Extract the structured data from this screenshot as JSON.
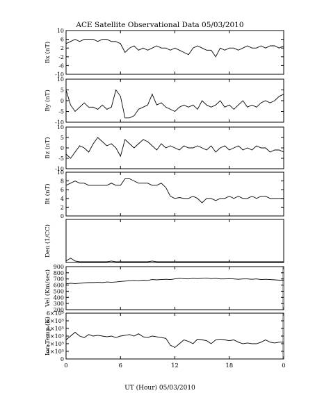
{
  "title": "ACE Satellite Observational Data   05/03/2010",
  "xlabel": "UT (Hour)   05/03/2010",
  "line_color": "#000000",
  "chart_data": [
    {
      "type": "line",
      "ylabel": "Bx (nT)",
      "ylim": [
        -10,
        10
      ],
      "yticks": [
        "10",
        "6",
        "2",
        "-2",
        "-6",
        "-10"
      ],
      "ytick_values": [
        10,
        6,
        2,
        -2,
        -6,
        -10
      ],
      "xlim": [
        0,
        24
      ],
      "x": [
        0,
        0.5,
        1,
        1.5,
        2,
        2.5,
        3,
        3.5,
        4,
        4.5,
        5,
        5.5,
        6,
        6.5,
        7,
        7.5,
        8,
        8.5,
        9,
        9.5,
        10,
        10.5,
        11,
        11.5,
        12,
        12.5,
        13,
        13.5,
        14,
        14.5,
        15,
        15.5,
        16,
        16.5,
        17,
        17.5,
        18,
        18.5,
        19,
        19.5,
        20,
        20.5,
        21,
        21.5,
        22,
        22.5,
        23,
        23.5,
        24
      ],
      "values": [
        4,
        5,
        6,
        5,
        6,
        6,
        6,
        5,
        6,
        6,
        5,
        5,
        4,
        0,
        2,
        3,
        1,
        2,
        1,
        2,
        3,
        2,
        2,
        1,
        2,
        1,
        0,
        -1,
        2,
        3,
        2,
        1,
        1,
        -2,
        2,
        1,
        2,
        2,
        1,
        2,
        3,
        2,
        2,
        3,
        2,
        3,
        3,
        2,
        3
      ]
    },
    {
      "type": "line",
      "ylabel": "By (nT)",
      "ylim": [
        -10,
        10
      ],
      "yticks": [
        "10",
        "5",
        "0",
        "-5",
        "-10"
      ],
      "ytick_values": [
        10,
        5,
        0,
        -5,
        -10
      ],
      "xlim": [
        0,
        24
      ],
      "x": [
        0,
        0.5,
        1,
        1.5,
        2,
        2.5,
        3,
        3.5,
        4,
        4.5,
        5,
        5.5,
        6,
        6.5,
        7,
        7.5,
        8,
        8.5,
        9,
        9.5,
        10,
        10.5,
        11,
        11.5,
        12,
        12.5,
        13,
        13.5,
        14,
        14.5,
        15,
        15.5,
        16,
        16.5,
        17,
        17.5,
        18,
        18.5,
        19,
        19.5,
        20,
        20.5,
        21,
        21.5,
        22,
        22.5,
        23,
        23.5,
        24
      ],
      "values": [
        5,
        -2,
        -5,
        -3,
        -1,
        -3,
        -3,
        -4,
        -2,
        -4,
        -3,
        5,
        2,
        -8,
        -8,
        -7,
        -4,
        -3,
        -2,
        3,
        -2,
        -1,
        -3,
        -4,
        -5,
        -3,
        -2,
        -3,
        -2,
        -4,
        0,
        -2,
        -3,
        -2,
        0,
        -3,
        -2,
        -4,
        -2,
        0,
        -3,
        -2,
        -3,
        -1,
        0,
        -1,
        0,
        2,
        3
      ]
    },
    {
      "type": "line",
      "ylabel": "Bz (nT)",
      "ylim": [
        -10,
        10
      ],
      "yticks": [
        "10",
        "5",
        "0",
        "-5",
        "-10"
      ],
      "ytick_values": [
        10,
        5,
        0,
        -5,
        -10
      ],
      "xlim": [
        0,
        24
      ],
      "x": [
        0,
        0.5,
        1,
        1.5,
        2,
        2.5,
        3,
        3.5,
        4,
        4.5,
        5,
        5.5,
        6,
        6.5,
        7,
        7.5,
        8,
        8.5,
        9,
        9.5,
        10,
        10.5,
        11,
        11.5,
        12,
        12.5,
        13,
        13.5,
        14,
        14.5,
        15,
        15.5,
        16,
        16.5,
        17,
        17.5,
        18,
        18.5,
        19,
        19.5,
        20,
        20.5,
        21,
        21.5,
        22,
        22.5,
        23,
        23.5,
        24
      ],
      "values": [
        -3,
        -5,
        -2,
        1,
        0,
        -2,
        2,
        5,
        3,
        1,
        2,
        0,
        -4,
        4,
        2,
        0,
        2,
        4,
        3,
        1,
        -1,
        2,
        0,
        1,
        0,
        -1,
        1,
        0,
        0,
        1,
        0,
        -1,
        1,
        -2,
        0,
        1,
        -1,
        0,
        1,
        -1,
        0,
        -1,
        1,
        0,
        0,
        -2,
        -1,
        -1,
        -2
      ]
    },
    {
      "type": "line",
      "ylabel": "Bt (nT)",
      "ylim": [
        0,
        10
      ],
      "yticks": [
        "10",
        "8",
        "6",
        "4",
        "2",
        "0"
      ],
      "ytick_values": [
        10,
        8,
        6,
        4,
        2,
        0
      ],
      "xlim": [
        0,
        24
      ],
      "x": [
        0,
        0.5,
        1,
        1.5,
        2,
        2.5,
        3,
        3.5,
        4,
        4.5,
        5,
        5.5,
        6,
        6.5,
        7,
        7.5,
        8,
        8.5,
        9,
        9.5,
        10,
        10.5,
        11,
        11.5,
        12,
        12.5,
        13,
        13.5,
        14,
        14.5,
        15,
        15.5,
        16,
        16.5,
        17,
        17.5,
        18,
        18.5,
        19,
        19.5,
        20,
        20.5,
        21,
        21.5,
        22,
        22.5,
        23,
        23.5,
        24
      ],
      "values": [
        7,
        7.5,
        8,
        7.5,
        7.5,
        7,
        7,
        7,
        7,
        7,
        7.5,
        7,
        7,
        8.5,
        8.5,
        8,
        7.5,
        7.5,
        7.5,
        7,
        7,
        7.5,
        6.5,
        4.5,
        4,
        4.2,
        4,
        4,
        4.5,
        4,
        3,
        4,
        4,
        3.5,
        4,
        4,
        4.5,
        4,
        4.5,
        4,
        4,
        4.5,
        4,
        4.5,
        4.5,
        4,
        4,
        4,
        4
      ]
    },
    {
      "type": "line",
      "ylabel": "Den (1/CC)",
      "ylim": [
        0,
        30
      ],
      "yticks": [],
      "ytick_values": [],
      "xlim": [
        0,
        24
      ],
      "x": [
        0,
        0.5,
        1,
        1.5,
        2,
        2.5,
        3,
        3.5,
        4,
        4.5,
        5,
        5.5,
        6,
        6.5,
        7,
        7.5,
        8,
        8.5,
        9,
        9.5,
        10,
        10.5,
        11,
        11.5,
        12,
        12.5,
        13,
        13.5,
        14,
        14.5,
        15,
        15.5,
        16,
        16.5,
        17,
        17.5,
        18,
        18.5,
        19,
        19.5,
        20,
        20.5,
        21,
        21.5,
        22,
        22.5,
        23,
        23.5,
        24
      ],
      "values": [
        1,
        3,
        1,
        0.5,
        0.5,
        0.5,
        0.5,
        0.5,
        0.5,
        0.5,
        1,
        0.5,
        0.5,
        0.5,
        0.5,
        0.5,
        0.5,
        0.5,
        0.5,
        1,
        0.5,
        0.5,
        0.5,
        0.5,
        0.5,
        0.5,
        0.5,
        0.5,
        0.5,
        0.5,
        0.5,
        0.5,
        0.5,
        0.5,
        0.5,
        0.5,
        0.5,
        0.5,
        0.5,
        0.5,
        0.5,
        0.5,
        0.5,
        0.5,
        0.5,
        0.5,
        0.5,
        0.5,
        0.5
      ]
    },
    {
      "type": "line",
      "ylabel": "Vel (Km/sec)",
      "ylim": [
        200,
        900
      ],
      "yticks": [
        "900",
        "800",
        "700",
        "600",
        "500",
        "400",
        "300",
        "200"
      ],
      "ytick_values": [
        900,
        800,
        700,
        600,
        500,
        400,
        300,
        200
      ],
      "xlim": [
        0,
        24
      ],
      "x": [
        0,
        0.5,
        1,
        1.5,
        2,
        2.5,
        3,
        3.5,
        4,
        4.5,
        5,
        5.5,
        6,
        6.5,
        7,
        7.5,
        8,
        8.5,
        9,
        9.5,
        10,
        10.5,
        11,
        11.5,
        12,
        12.5,
        13,
        13.5,
        14,
        14.5,
        15,
        15.5,
        16,
        16.5,
        17,
        17.5,
        18,
        18.5,
        19,
        19.5,
        20,
        20.5,
        21,
        21.5,
        22,
        22.5,
        23,
        23.5,
        24
      ],
      "values": [
        620,
        630,
        625,
        630,
        635,
        640,
        640,
        645,
        640,
        650,
        645,
        650,
        660,
        665,
        670,
        675,
        670,
        680,
        675,
        690,
        685,
        690,
        695,
        690,
        700,
        710,
        705,
        700,
        710,
        705,
        710,
        715,
        705,
        710,
        700,
        700,
        705,
        700,
        695,
        700,
        700,
        695,
        700,
        690,
        695,
        690,
        685,
        680,
        680
      ]
    },
    {
      "type": "line",
      "ylabel": "Ion Temp (K)",
      "ylim": [
        0,
        600000
      ],
      "yticks": [
        "6×10⁵",
        "5×10⁵",
        "4×10⁵",
        "3×10⁵",
        "2×10⁵",
        "1×10⁵",
        "0"
      ],
      "ytick_values": [
        600000,
        500000,
        400000,
        300000,
        200000,
        100000,
        0
      ],
      "xlim": [
        0,
        24
      ],
      "x": [
        0,
        0.5,
        1,
        1.5,
        2,
        2.5,
        3,
        3.5,
        4,
        4.5,
        5,
        5.5,
        6,
        6.5,
        7,
        7.5,
        8,
        8.5,
        9,
        9.5,
        10,
        10.5,
        11,
        11.5,
        12,
        12.5,
        13,
        13.5,
        14,
        14.5,
        15,
        15.5,
        16,
        16.5,
        17,
        17.5,
        18,
        18.5,
        19,
        19.5,
        20,
        20.5,
        21,
        21.5,
        22,
        22.5,
        23,
        23.5,
        24
      ],
      "values": [
        250000,
        300000,
        350000,
        300000,
        280000,
        320000,
        300000,
        310000,
        300000,
        290000,
        300000,
        280000,
        300000,
        310000,
        320000,
        300000,
        330000,
        290000,
        280000,
        300000,
        290000,
        280000,
        270000,
        180000,
        150000,
        200000,
        250000,
        230000,
        200000,
        260000,
        250000,
        240000,
        200000,
        250000,
        260000,
        250000,
        240000,
        250000,
        220000,
        200000,
        210000,
        200000,
        200000,
        220000,
        250000,
        220000,
        210000,
        220000,
        220000
      ]
    }
  ],
  "xticks": [
    "0",
    "6",
    "12",
    "18",
    "0"
  ],
  "xtick_values": [
    0,
    6,
    12,
    18,
    24
  ]
}
